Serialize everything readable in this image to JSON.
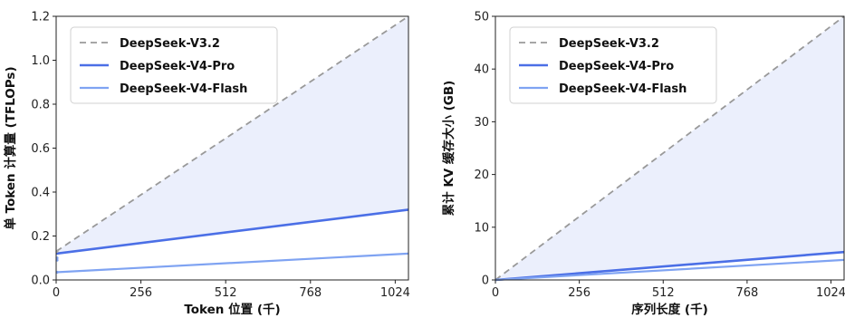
{
  "chart_data": [
    {
      "type": "line",
      "xlabel": "Token 位置 (千)",
      "ylabel": "单 Token 计算量 (TFLOPs)",
      "xlim": [
        0,
        1064
      ],
      "ylim": [
        0,
        1.2
      ],
      "xticks": [
        0,
        256,
        512,
        768,
        1024
      ],
      "yticks": [
        0.0,
        0.2,
        0.4,
        0.6,
        0.8,
        1.0,
        1.2
      ],
      "ytick_labels": [
        "0.0",
        "0.2",
        "0.4",
        "0.6",
        "0.8",
        "1.0",
        "1.2"
      ],
      "grid": false,
      "legend_position": "top-left",
      "shaded_region": "between DeepSeek-V3.2 and DeepSeek-V4-Pro",
      "series": [
        {
          "name": "DeepSeek-V3.2",
          "style": "dashed",
          "color": "#999999",
          "x": [
            0,
            1064
          ],
          "y": [
            0.13,
            1.2
          ]
        },
        {
          "name": "DeepSeek-V4-Pro",
          "style": "solid",
          "color": "#4b6fe6",
          "x": [
            0,
            1064
          ],
          "y": [
            0.12,
            0.32
          ]
        },
        {
          "name": "DeepSeek-V4-Flash",
          "style": "solid",
          "color": "#7fa3f2",
          "x": [
            0,
            1064
          ],
          "y": [
            0.035,
            0.12
          ]
        }
      ]
    },
    {
      "type": "line",
      "xlabel": "序列长度 (千)",
      "ylabel": "累计 KV 缓存大小 (GB)",
      "xlim": [
        0,
        1064
      ],
      "ylim": [
        0,
        50
      ],
      "xticks": [
        0,
        256,
        512,
        768,
        1024
      ],
      "yticks": [
        0,
        10,
        20,
        30,
        40,
        50
      ],
      "ytick_labels": [
        "0",
        "10",
        "20",
        "30",
        "40",
        "50"
      ],
      "grid": false,
      "legend_position": "top-left",
      "shaded_region": "between DeepSeek-V3.2 and DeepSeek-V4-Pro",
      "series": [
        {
          "name": "DeepSeek-V3.2",
          "style": "dashed",
          "color": "#999999",
          "x": [
            0,
            1064
          ],
          "y": [
            0,
            50
          ]
        },
        {
          "name": "DeepSeek-V4-Pro",
          "style": "solid",
          "color": "#4b6fe6",
          "x": [
            0,
            1064
          ],
          "y": [
            0,
            5.3
          ]
        },
        {
          "name": "DeepSeek-V4-Flash",
          "style": "solid",
          "color": "#7fa3f2",
          "x": [
            0,
            1064
          ],
          "y": [
            0,
            3.8
          ]
        }
      ]
    }
  ]
}
